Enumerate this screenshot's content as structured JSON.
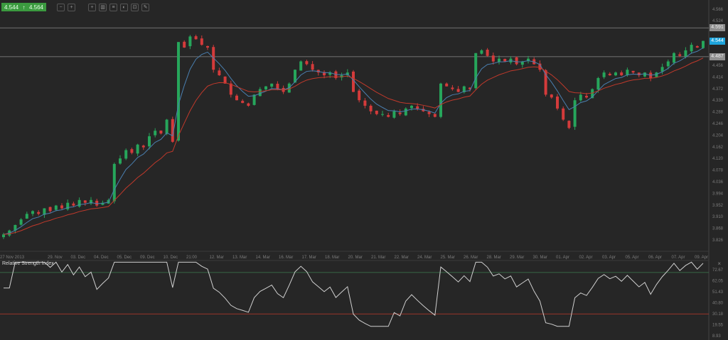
{
  "toolbar": {
    "bid": "4.544",
    "ask": "4.564",
    "arrow": "↑",
    "tools": [
      "zoom-out-icon",
      "zoom-in-icon",
      "crosshair-icon",
      "candles-icon",
      "indicators-icon",
      "objects-icon",
      "chart-settings-icon",
      "draw-icon"
    ]
  },
  "colors": {
    "bg": "#262626",
    "up": "#26a65b",
    "down": "#d43b3b",
    "ema_fast": "#4a7fb0",
    "ema_slow": "#c0392b",
    "rsi": "#cfcfcf",
    "level_hi": "#3c7a4f",
    "level_lo": "#c0392b",
    "current": "#1ea4dc",
    "hline": "#8a8a8a"
  },
  "chart_data": [
    {
      "type": "candlestick",
      "closes": [
        3.846,
        3.86,
        3.88,
        3.9,
        3.92,
        3.93,
        3.92,
        3.94,
        3.93,
        3.95,
        3.94,
        3.96,
        3.95,
        3.97,
        3.96,
        3.97,
        3.95,
        3.96,
        3.97,
        4.1,
        4.12,
        4.15,
        4.14,
        4.17,
        4.16,
        4.2,
        4.22,
        4.21,
        4.26,
        4.18,
        4.54,
        4.52,
        4.56,
        4.55,
        4.53,
        4.52,
        4.44,
        4.42,
        4.39,
        4.35,
        4.33,
        4.32,
        4.31,
        4.35,
        4.37,
        4.38,
        4.39,
        4.37,
        4.36,
        4.39,
        4.44,
        4.47,
        4.46,
        4.44,
        4.43,
        4.42,
        4.43,
        4.41,
        4.42,
        4.43,
        4.36,
        4.33,
        4.31,
        4.29,
        4.28,
        4.28,
        4.27,
        4.29,
        4.28,
        4.3,
        4.31,
        4.3,
        4.29,
        4.28,
        4.27,
        4.39,
        4.38,
        4.37,
        4.36,
        4.38,
        4.37,
        4.5,
        4.51,
        4.49,
        4.47,
        4.48,
        4.47,
        4.48,
        4.46,
        4.47,
        4.48,
        4.46,
        4.44,
        4.35,
        4.34,
        4.3,
        4.26,
        4.23,
        4.33,
        4.35,
        4.34,
        4.37,
        4.41,
        4.43,
        4.42,
        4.43,
        4.42,
        4.44,
        4.43,
        4.42,
        4.43,
        4.41,
        4.43,
        4.45,
        4.47,
        4.5,
        4.49,
        4.51,
        4.53,
        4.52,
        4.544
      ],
      "x_ticks": [
        "27 Nov 2013",
        "29. Nov",
        "03. Dec",
        "04. Dec",
        "05. Dec",
        "09. Dec",
        "10. Dec",
        "21:00",
        "12. Mar",
        "13. Mar",
        "14. Mar",
        "16. Mar",
        "17. Mar",
        "18. Mar",
        "20. Mar",
        "21. Mar",
        "22. Mar",
        "24. Mar",
        "25. Mar",
        "26. Mar",
        "28. Mar",
        "29. Mar",
        "30. Mar",
        "01. Apr",
        "02. Apr",
        "03. Apr",
        "05. Apr",
        "06. Apr",
        "07. Apr",
        "09. Apr"
      ],
      "y_ticks": [
        "4.566",
        "4.524",
        "4.456",
        "4.414",
        "4.372",
        "4.330",
        "4.288",
        "4.246",
        "4.204",
        "4.162",
        "4.120",
        "4.078",
        "4.036",
        "3.994",
        "3.952",
        "3.910",
        "3.868",
        "3.826"
      ],
      "horizontal_lines": [
        {
          "value": 4.591,
          "label": "4.591"
        },
        {
          "value": 4.487,
          "label": "4.487"
        }
      ],
      "current_price": {
        "value": 4.544,
        "label": "4.544"
      },
      "moving_averages": [
        "fast",
        "slow"
      ]
    },
    {
      "type": "line",
      "title": "Relative Strength Index",
      "y_ticks": [
        "72.67",
        "62.05",
        "51.43",
        "40.80",
        "30.18",
        "19.55",
        "8.93"
      ],
      "levels": [
        70,
        30
      ],
      "close_label": "×"
    }
  ]
}
